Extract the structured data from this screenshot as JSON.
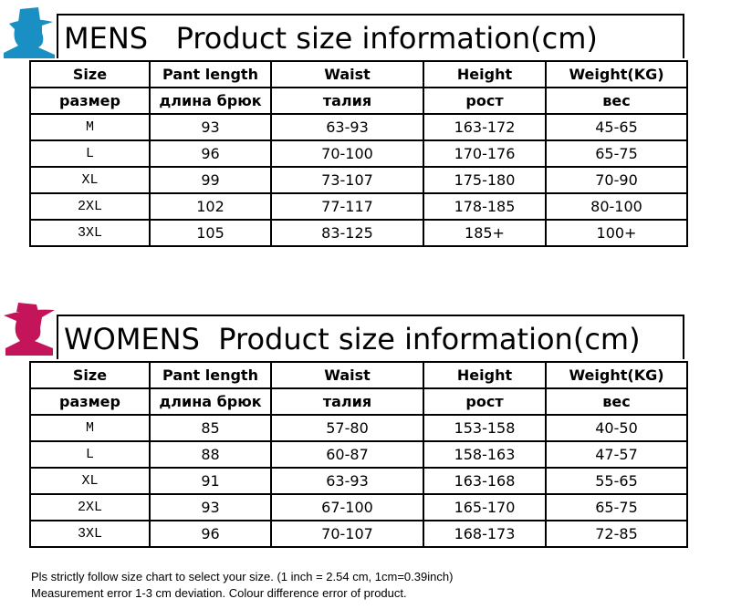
{
  "mens": {
    "title": "MENS   Product size information(cm)",
    "table": {
      "header": [
        [
          "Size",
          "Pant length",
          "Waist",
          "Height",
          "Weight(KG)"
        ],
        [
          "размер",
          "длина брюк",
          "талия",
          "рост",
          "вес"
        ]
      ],
      "rows": [
        [
          "M",
          "93",
          "63-93",
          "163-172",
          "45-65"
        ],
        [
          "L",
          "96",
          "70-100",
          "170-176",
          "65-75"
        ],
        [
          "XL",
          "99",
          "73-107",
          "175-180",
          "70-90"
        ],
        [
          "2XL",
          "102",
          "77-117",
          "178-185",
          "80-100"
        ],
        [
          "3XL",
          "105",
          "83-125",
          "185+",
          "100+"
        ]
      ]
    }
  },
  "womens": {
    "title": "WOMENS  Product size information(cm)",
    "table": {
      "header": [
        [
          "Size",
          "Pant length",
          "Waist",
          "Height",
          "Weight(KG)"
        ],
        [
          "размер",
          "длина брюк",
          "талия",
          "рост",
          "вес"
        ]
      ],
      "rows": [
        [
          "M",
          "85",
          "57-80",
          "153-158",
          "40-50"
        ],
        [
          "L",
          "88",
          "60-87",
          "158-163",
          "47-57"
        ],
        [
          "XL",
          "91",
          "63-93",
          "163-168",
          "55-65"
        ],
        [
          "2XL",
          "93",
          "67-100",
          "165-170",
          "65-75"
        ],
        [
          "3XL",
          "96",
          "70-107",
          "168-173",
          "72-85"
        ]
      ]
    }
  },
  "footer": [
    "Pls strictly follow size chart to select your size. (1 inch = 2.54 cm,  1cm=0.39inch)",
    "Measurement error 1-3 cm deviation. Colour difference error of product."
  ]
}
